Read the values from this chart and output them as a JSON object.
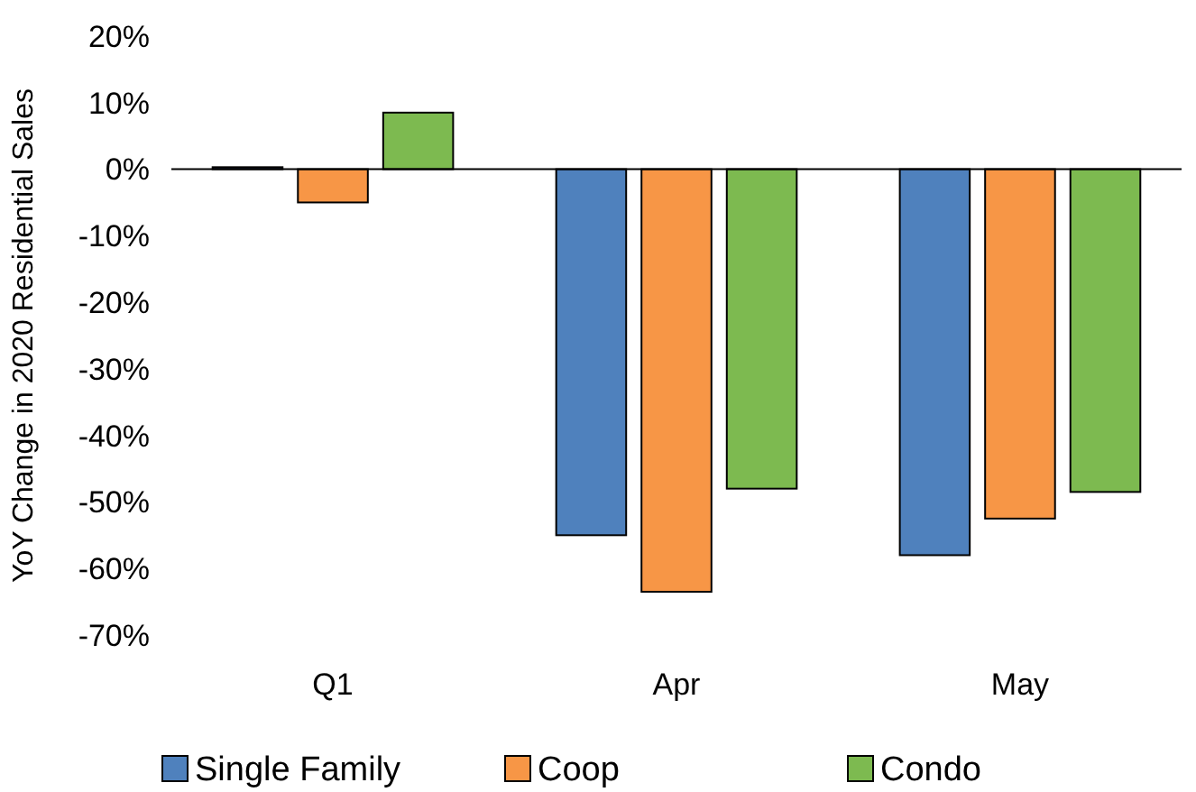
{
  "chart_data": {
    "type": "bar",
    "ylabel": "YoY Change in 2020 Residential Sales",
    "categories": [
      "Q1",
      "Apr",
      "May"
    ],
    "series": [
      {
        "name": "Single Family",
        "color": "#4f81bd",
        "values": [
          0.3,
          -55,
          -58
        ]
      },
      {
        "name": "Coop",
        "color": "#f79646",
        "values": [
          -5,
          -63.5,
          -52.5
        ]
      },
      {
        "name": "Condo",
        "color": "#7dba50",
        "values": [
          8.5,
          -48,
          -48.5
        ]
      }
    ],
    "ylim": [
      -70,
      20
    ],
    "yticks": [
      {
        "value": -70,
        "label": "-70%"
      },
      {
        "value": -60,
        "label": "-60%"
      },
      {
        "value": -50,
        "label": "-50%"
      },
      {
        "value": -40,
        "label": "-40%"
      },
      {
        "value": -30,
        "label": "-30%"
      },
      {
        "value": -20,
        "label": "-20%"
      },
      {
        "value": -10,
        "label": "-10%"
      },
      {
        "value": 0,
        "label": "0%"
      },
      {
        "value": 10,
        "label": "10%"
      },
      {
        "value": 20,
        "label": "20%"
      }
    ],
    "legend": "bottom"
  }
}
